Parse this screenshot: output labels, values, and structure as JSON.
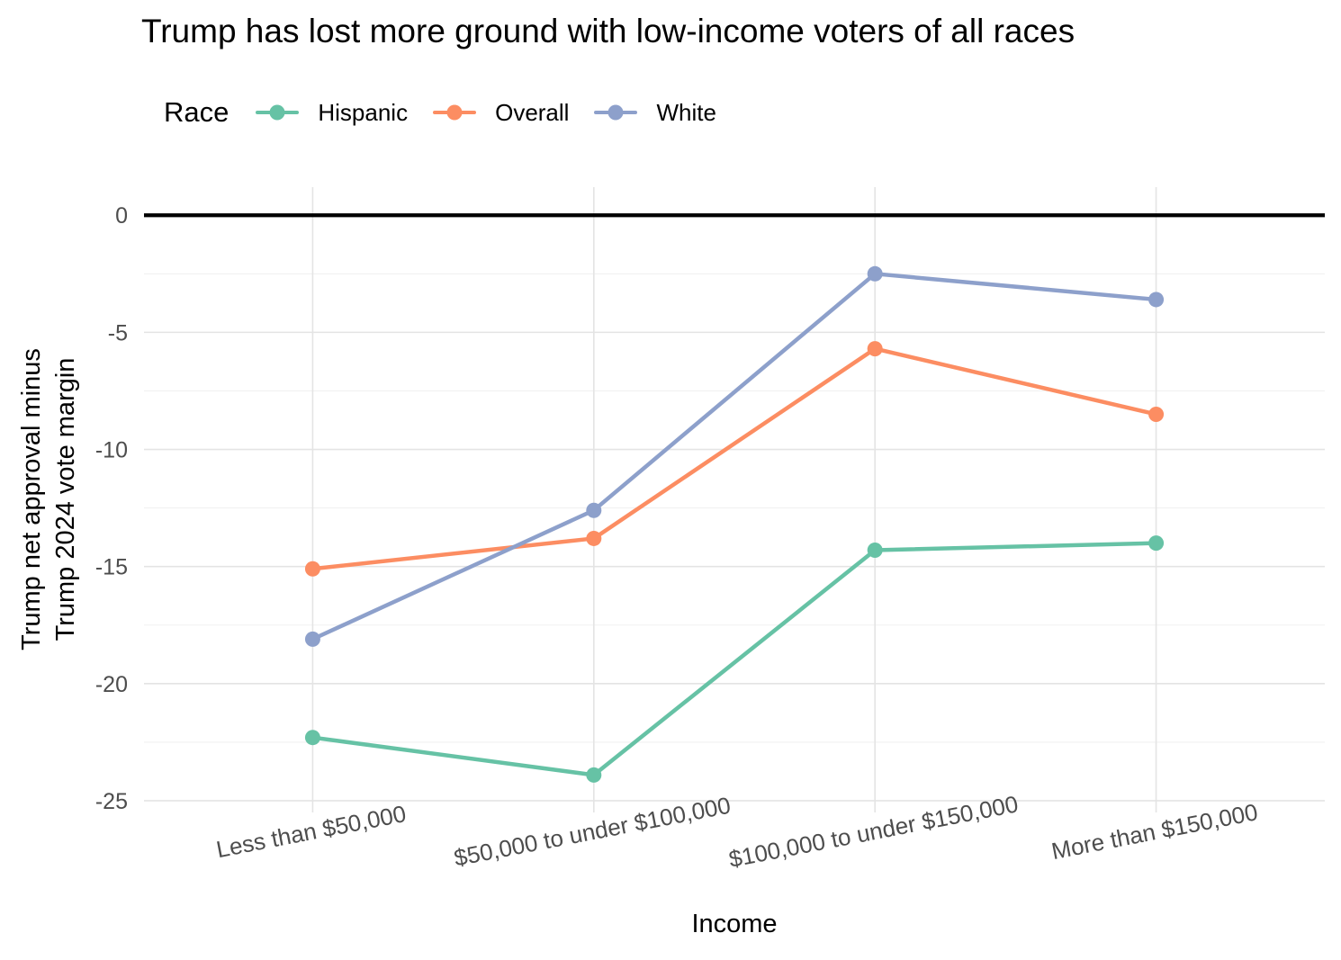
{
  "legend": {
    "title": "Race",
    "items": [
      {
        "label": "Hispanic",
        "color": "#66C2A5"
      },
      {
        "label": "Overall",
        "color": "#FC8D62"
      },
      {
        "label": "White",
        "color": "#8DA0CB"
      }
    ]
  },
  "chart_data": {
    "type": "line",
    "title": "Trump has lost more ground with low-income voters of all races",
    "xlabel": "Income",
    "ylabel": "Trump net approval minus Trump 2024 vote margin",
    "ylabel_lines": [
      "Trump net approval minus",
      "Trump 2024 vote margin"
    ],
    "categories": [
      "Less than $50,000",
      "$50,000 to under $100,000",
      "$100,000 to under $150,000",
      "More than $150,000"
    ],
    "series": [
      {
        "name": "Hispanic",
        "color": "#66C2A5",
        "values": [
          -22.3,
          -23.9,
          -14.3,
          -14.0
        ]
      },
      {
        "name": "Overall",
        "color": "#FC8D62",
        "values": [
          -15.1,
          -13.8,
          -5.7,
          -8.5
        ]
      },
      {
        "name": "White",
        "color": "#8DA0CB",
        "values": [
          -18.1,
          -12.6,
          -2.5,
          -3.6
        ]
      }
    ],
    "yticks": [
      0,
      -5,
      -10,
      -15,
      -20,
      -25
    ],
    "ytick_labels": [
      "0",
      "-5",
      "-10",
      "-15",
      "-20",
      "-25"
    ],
    "y_minor_ticks": [
      -2.5,
      -7.5,
      -12.5,
      -17.5,
      -22.5
    ],
    "ylim": [
      -25.5,
      1.2
    ],
    "reference_line_y": 0,
    "grid": true,
    "legend_position": "top-left"
  },
  "style": {
    "background": "#FFFFFF",
    "grid_major": "#E4E4E4",
    "grid_minor": "#F1F1F1",
    "zero_line": "#000000",
    "tick_label_color": "#4D4D4D",
    "text_color": "#000000"
  }
}
